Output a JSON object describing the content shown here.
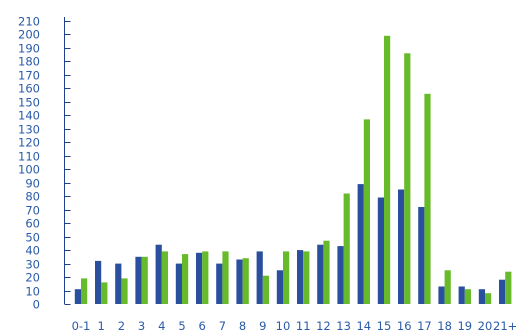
{
  "chart_data": {
    "type": "bar",
    "categories": [
      "0-1",
      "1",
      "2",
      "3",
      "4",
      "5",
      "6",
      "7",
      "8",
      "9",
      "10",
      "11",
      "12",
      "13",
      "14",
      "15",
      "16",
      "17",
      "18",
      "19",
      "20",
      "21+"
    ],
    "series": [
      {
        "color": "#2a4f9e",
        "values": [
          11,
          32,
          30,
          35,
          44,
          30,
          38,
          30,
          33,
          39,
          25,
          40,
          44,
          43,
          89,
          79,
          85,
          72,
          13,
          13,
          11,
          18
        ]
      },
      {
        "color": "#67bb2a",
        "values": [
          19,
          16,
          19,
          35,
          39,
          37,
          39,
          39,
          34,
          21,
          39,
          39,
          47,
          82,
          137,
          199,
          186,
          156,
          25,
          11,
          8,
          24
        ]
      }
    ],
    "y_ticks": [
      "0",
      "10",
      "20",
      "30",
      "40",
      "50",
      "60",
      "70",
      "80",
      "90",
      "100",
      "110",
      "120",
      "130",
      "140",
      "150",
      "160",
      "170",
      "180",
      "190",
      "200",
      "210"
    ],
    "ylim": [
      0,
      210
    ],
    "grid": false,
    "legend": "none"
  }
}
